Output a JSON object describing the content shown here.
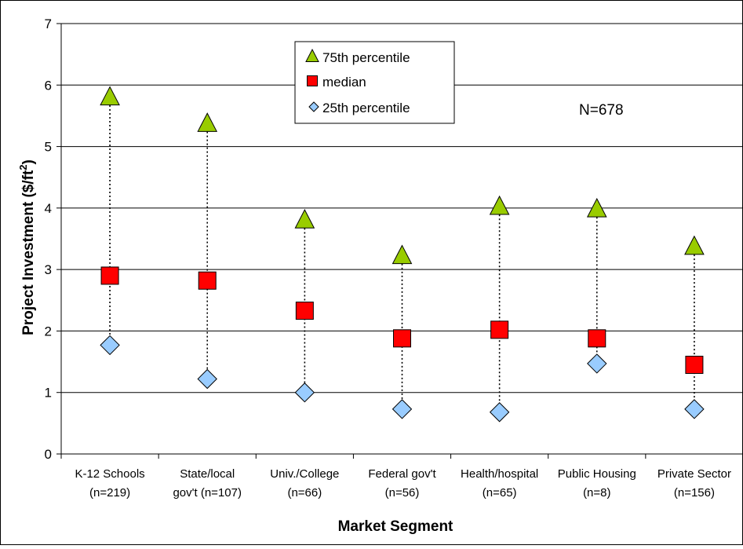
{
  "chart_data": {
    "type": "scatter",
    "title": "",
    "xlabel": "Market Segment",
    "ylabel": "Project Investment ($/ft",
    "ylabel_superscript": "2",
    "ylabel_close": ")",
    "ylim": [
      0,
      7
    ],
    "yticks": [
      "0",
      "1",
      "2",
      "3",
      "4",
      "5",
      "6",
      "7"
    ],
    "grid": true,
    "legend_position": "top-center",
    "annotation": "N=678",
    "categories": [
      {
        "line1": "K-12 Schools",
        "line2": "(n=219)"
      },
      {
        "line1": "State/local",
        "line2": "gov't (n=107)"
      },
      {
        "line1": "Univ./College",
        "line2": "(n=66)"
      },
      {
        "line1": "Federal gov't",
        "line2": "(n=56)"
      },
      {
        "line1": "Health/hospital",
        "line2": "(n=65)"
      },
      {
        "line1": "Public Housing",
        "line2": "(n=8)"
      },
      {
        "line1": "Private Sector",
        "line2": "(n=156)"
      }
    ],
    "series": [
      {
        "name": "75th percentile",
        "marker": "triangle",
        "color": "#99cc00",
        "values": [
          5.8,
          5.37,
          3.8,
          3.22,
          4.02,
          3.98,
          3.37
        ]
      },
      {
        "name": "median",
        "marker": "square",
        "color": "#ff0000",
        "values": [
          2.9,
          2.82,
          2.33,
          1.88,
          2.02,
          1.88,
          1.45
        ]
      },
      {
        "name": "25th percentile",
        "marker": "diamond",
        "color": "#99ccff",
        "values": [
          1.77,
          1.22,
          1.0,
          0.73,
          0.68,
          1.47,
          0.73
        ]
      }
    ]
  }
}
